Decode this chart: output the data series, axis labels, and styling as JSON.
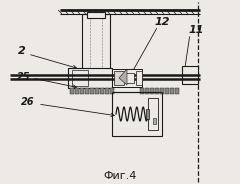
{
  "bg_color": "#ede9e4",
  "line_color": "#1a1a1a",
  "title": "Фиг.4",
  "figsize": [
    2.4,
    1.84
  ],
  "dpi": 100
}
